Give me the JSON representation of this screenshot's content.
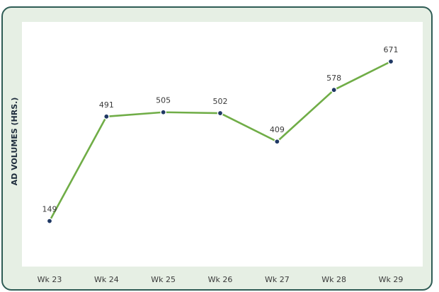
{
  "chart_data": {
    "type": "line",
    "title": "",
    "xlabel": "",
    "ylabel": "AD VOLUMES (HRS.)",
    "categories": [
      "Wk 23",
      "Wk 24",
      "Wk 25",
      "Wk 26",
      "Wk 27",
      "Wk 28",
      "Wk 29"
    ],
    "series": [
      {
        "values": [
          149,
          491,
          505,
          502,
          409,
          578,
          671
        ]
      }
    ],
    "data_labels": [
      "149",
      "491",
      "505",
      "502",
      "409",
      "578",
      "671"
    ],
    "ylim": [
      0,
      750
    ],
    "grid": false,
    "legend": "none",
    "colors": {
      "line": "#70ad47",
      "drop_line": "#4f81bd",
      "marker_fill": "#1f3864",
      "marker_edge": "#ffffff"
    }
  }
}
